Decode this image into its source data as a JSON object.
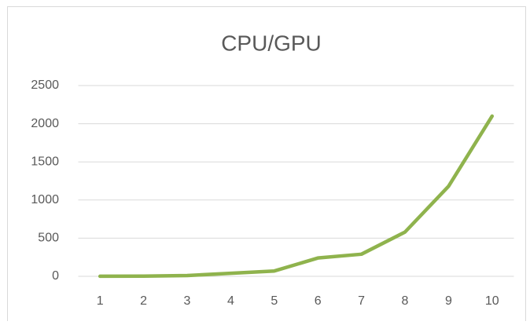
{
  "chart_data": {
    "type": "line",
    "title": "CPU/GPU",
    "categories": [
      "1",
      "2",
      "3",
      "4",
      "5",
      "6",
      "7",
      "8",
      "9",
      "10"
    ],
    "series": [
      {
        "color": "#8fb34d",
        "values": [
          1,
          3,
          10,
          40,
          70,
          240,
          290,
          580,
          1180,
          2100
        ]
      }
    ],
    "ylim": [
      0,
      2500
    ],
    "yticks": [
      0,
      500,
      1000,
      1500,
      2000,
      2500
    ],
    "grid": true
  }
}
